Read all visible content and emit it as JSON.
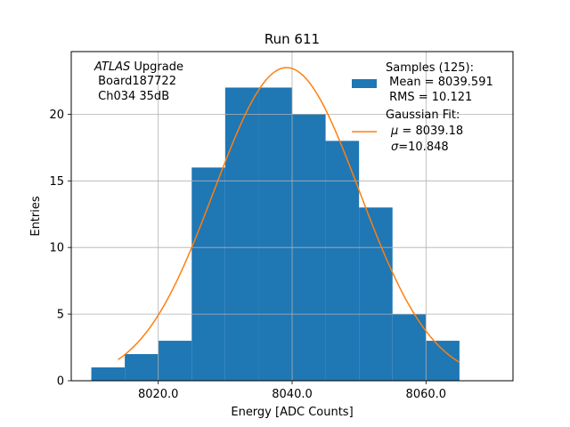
{
  "chart_data": {
    "type": "bar",
    "title": "Run 611",
    "xlabel": "Energy [ADC Counts]",
    "ylabel": "Entries",
    "xlim": [
      8007,
      8073
    ],
    "ylim": [
      0,
      24.7
    ],
    "grid": true,
    "xticks": [
      8020,
      8040,
      8060
    ],
    "xtick_labels": [
      "8020.0",
      "8040.0",
      "8060.0"
    ],
    "yticks": [
      0,
      5,
      10,
      15,
      20
    ],
    "ytick_labels": [
      "0",
      "5",
      "10",
      "15",
      "20"
    ],
    "bar_color": "#1f77b4",
    "fit_color": "#ff7f0e",
    "bins": [
      {
        "x0": 8010,
        "x1": 8015,
        "value": 1
      },
      {
        "x0": 8015,
        "x1": 8020,
        "value": 2
      },
      {
        "x0": 8020,
        "x1": 8025,
        "value": 3
      },
      {
        "x0": 8025,
        "x1": 8030,
        "value": 16
      },
      {
        "x0": 8030,
        "x1": 8035,
        "value": 22
      },
      {
        "x0": 8035,
        "x1": 8040,
        "value": 22
      },
      {
        "x0": 8040,
        "x1": 8045,
        "value": 20
      },
      {
        "x0": 8045,
        "x1": 8050,
        "value": 18
      },
      {
        "x0": 8050,
        "x1": 8055,
        "value": 13
      },
      {
        "x0": 8055,
        "x1": 8060,
        "value": 5
      },
      {
        "x0": 8060,
        "x1": 8065,
        "value": 3
      }
    ],
    "fit": {
      "mu": 8039.18,
      "sigma": 10.848,
      "peak": 23.5,
      "x_range": [
        8014,
        8065
      ]
    },
    "annotation": {
      "atlas": "ATLAS",
      "line1_rest": " Upgrade",
      "line2": " Board187722",
      "line3": " Ch034 35dB"
    },
    "legend": {
      "location": "top-right",
      "samples_line1": "Samples (125):",
      "samples_line2": " Mean = 8039.591",
      "samples_line3": " RMS = 10.121",
      "fit_line1": "Gaussian Fit:",
      "fit_mu_symbol": "μ",
      "fit_mu_value": " = 8039.18",
      "fit_sigma_symbol": "σ",
      "fit_sigma_value": "=10.848"
    }
  }
}
